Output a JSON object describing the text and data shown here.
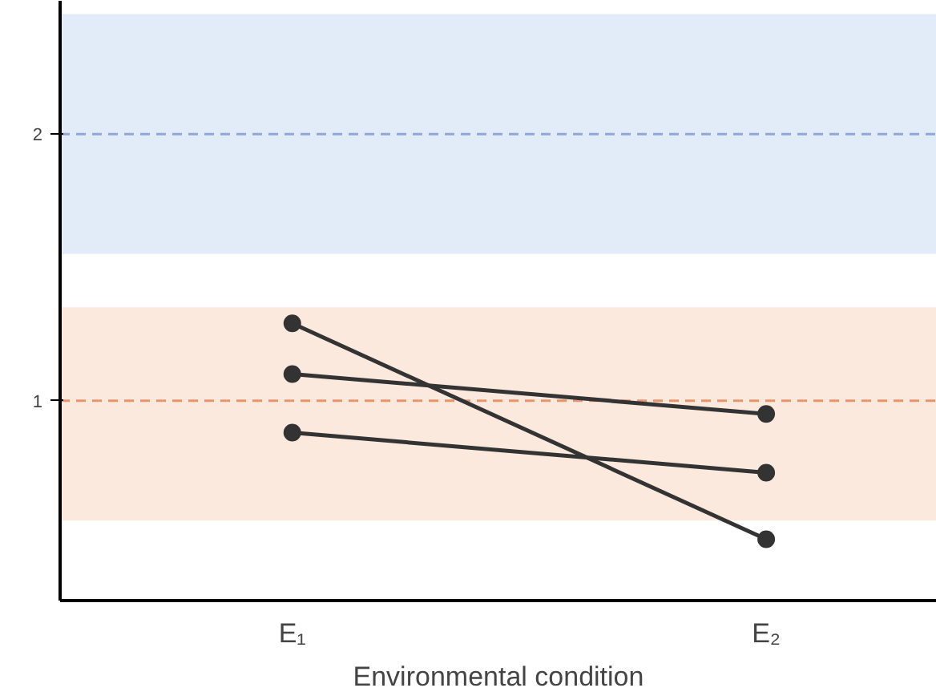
{
  "chart_data": {
    "type": "line",
    "xlabel": "Environmental condition",
    "categories": [
      "E₁",
      "E₂"
    ],
    "series": [
      {
        "color": "#333333",
        "values": [
          1.29,
          0.48
        ]
      },
      {
        "color": "#333333",
        "values": [
          1.1,
          0.95
        ]
      },
      {
        "color": "#333333",
        "values": [
          0.88,
          0.73
        ]
      }
    ],
    "ylim": [
      0.25,
      2.5
    ],
    "yticks": [
      1,
      2
    ],
    "grid": false,
    "marker": "circle",
    "line_style": "solid",
    "ref_lines": [
      {
        "axis": "y",
        "value": 2,
        "color": "#8fa8d8",
        "line_style": "dashed"
      },
      {
        "axis": "y",
        "value": 1,
        "color": "#e8956a",
        "line_style": "dashed"
      }
    ],
    "bands": [
      {
        "axis": "y",
        "from": 1.55,
        "to": 2.45,
        "color": "#dbe7f7"
      },
      {
        "axis": "y",
        "from": 0.55,
        "to": 1.35,
        "color": "#fbe3d6"
      }
    ]
  }
}
